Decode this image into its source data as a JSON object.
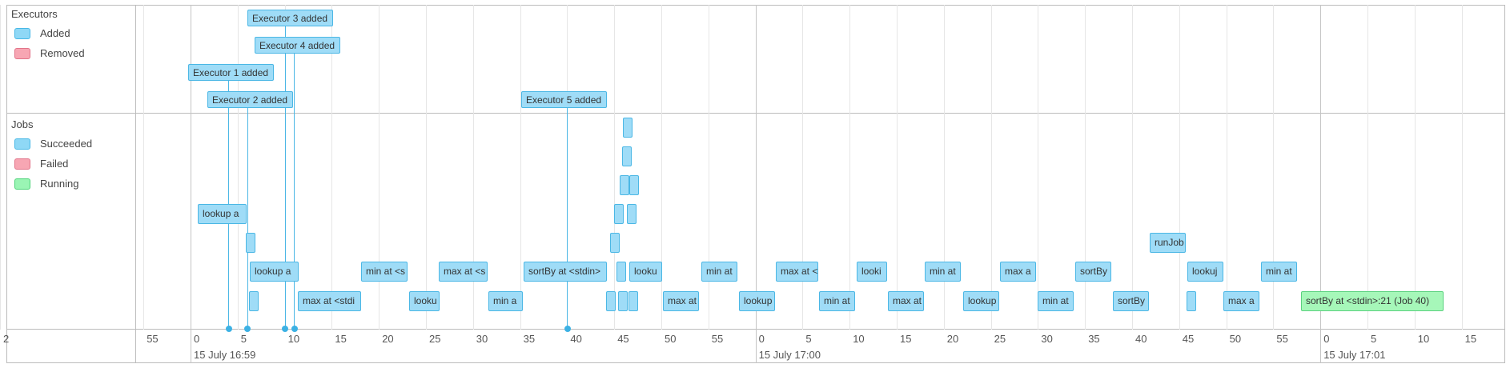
{
  "executors": {
    "title": "Executors",
    "legend": [
      {
        "label": "Added",
        "color": "#8fd8f6"
      },
      {
        "label": "Removed",
        "color": "#f7a6b3"
      }
    ],
    "events": [
      {
        "label": "Executor 3 added",
        "time_s": 10
      },
      {
        "label": "Executor 4 added",
        "time_s": 11
      },
      {
        "label": "Executor 1 added",
        "time_s": 4
      },
      {
        "label": "Executor 2 added",
        "time_s": 6
      },
      {
        "label": "Executor 5 added",
        "time_s": 40
      }
    ]
  },
  "jobs": {
    "title": "Jobs",
    "legend": [
      {
        "label": "Succeeded",
        "color": "#8fd8f6"
      },
      {
        "label": "Failed",
        "color": "#f7a6b3"
      },
      {
        "label": "Running",
        "color": "#9af5b4"
      }
    ],
    "items": [
      {
        "label": "lookup a",
        "status": "succeeded"
      },
      {
        "label": "",
        "status": "succeeded"
      },
      {
        "label": "lookup a",
        "status": "succeeded"
      },
      {
        "label": "",
        "status": "succeeded"
      },
      {
        "label": "max at <stdi",
        "status": "succeeded"
      },
      {
        "label": "min at <s",
        "status": "succeeded"
      },
      {
        "label": "looku",
        "status": "succeeded"
      },
      {
        "label": "max at <s",
        "status": "succeeded"
      },
      {
        "label": "min a",
        "status": "succeeded"
      },
      {
        "label": "sortBy at <stdin>",
        "status": "succeeded"
      },
      {
        "label": "",
        "status": "succeeded"
      },
      {
        "label": "",
        "status": "succeeded"
      },
      {
        "label": "",
        "status": "succeeded"
      },
      {
        "label": "",
        "status": "succeeded"
      },
      {
        "label": "",
        "status": "succeeded"
      },
      {
        "label": "",
        "status": "succeeded"
      },
      {
        "label": "",
        "status": "succeeded"
      },
      {
        "label": "",
        "status": "succeeded"
      },
      {
        "label": "",
        "status": "succeeded"
      },
      {
        "label": "",
        "status": "succeeded"
      },
      {
        "label": "looku",
        "status": "succeeded"
      },
      {
        "label": "",
        "status": "succeeded"
      },
      {
        "label": "max at",
        "status": "succeeded"
      },
      {
        "label": "min at",
        "status": "succeeded"
      },
      {
        "label": "lookup",
        "status": "succeeded"
      },
      {
        "label": "max at <",
        "status": "succeeded"
      },
      {
        "label": "min at",
        "status": "succeeded"
      },
      {
        "label": "looki",
        "status": "succeeded"
      },
      {
        "label": "max at",
        "status": "succeeded"
      },
      {
        "label": "min at",
        "status": "succeeded"
      },
      {
        "label": "lookup",
        "status": "succeeded"
      },
      {
        "label": "max a",
        "status": "succeeded"
      },
      {
        "label": "min at",
        "status": "succeeded"
      },
      {
        "label": "sortBy",
        "status": "succeeded"
      },
      {
        "label": "sortBy",
        "status": "succeeded"
      },
      {
        "label": "runJob",
        "status": "succeeded"
      },
      {
        "label": "lookuj",
        "status": "succeeded"
      },
      {
        "label": "",
        "status": "succeeded"
      },
      {
        "label": "max a",
        "status": "succeeded"
      },
      {
        "label": "min at",
        "status": "succeeded"
      },
      {
        "label": "sortBy at <stdin>:21 (Job 40)",
        "status": "running"
      }
    ]
  },
  "axis": {
    "minor_ticks": [
      "55",
      "0",
      "5",
      "10",
      "15",
      "20",
      "25",
      "30",
      "35",
      "40",
      "45",
      "50",
      "55",
      "0",
      "5",
      "10",
      "15",
      "20",
      "25",
      "30",
      "35",
      "40",
      "45",
      "50",
      "55",
      "0",
      "5",
      "10",
      "15",
      "2"
    ],
    "major_labels": [
      "15 July 16:59",
      "15 July 17:00",
      "15 July 17:01"
    ]
  }
}
